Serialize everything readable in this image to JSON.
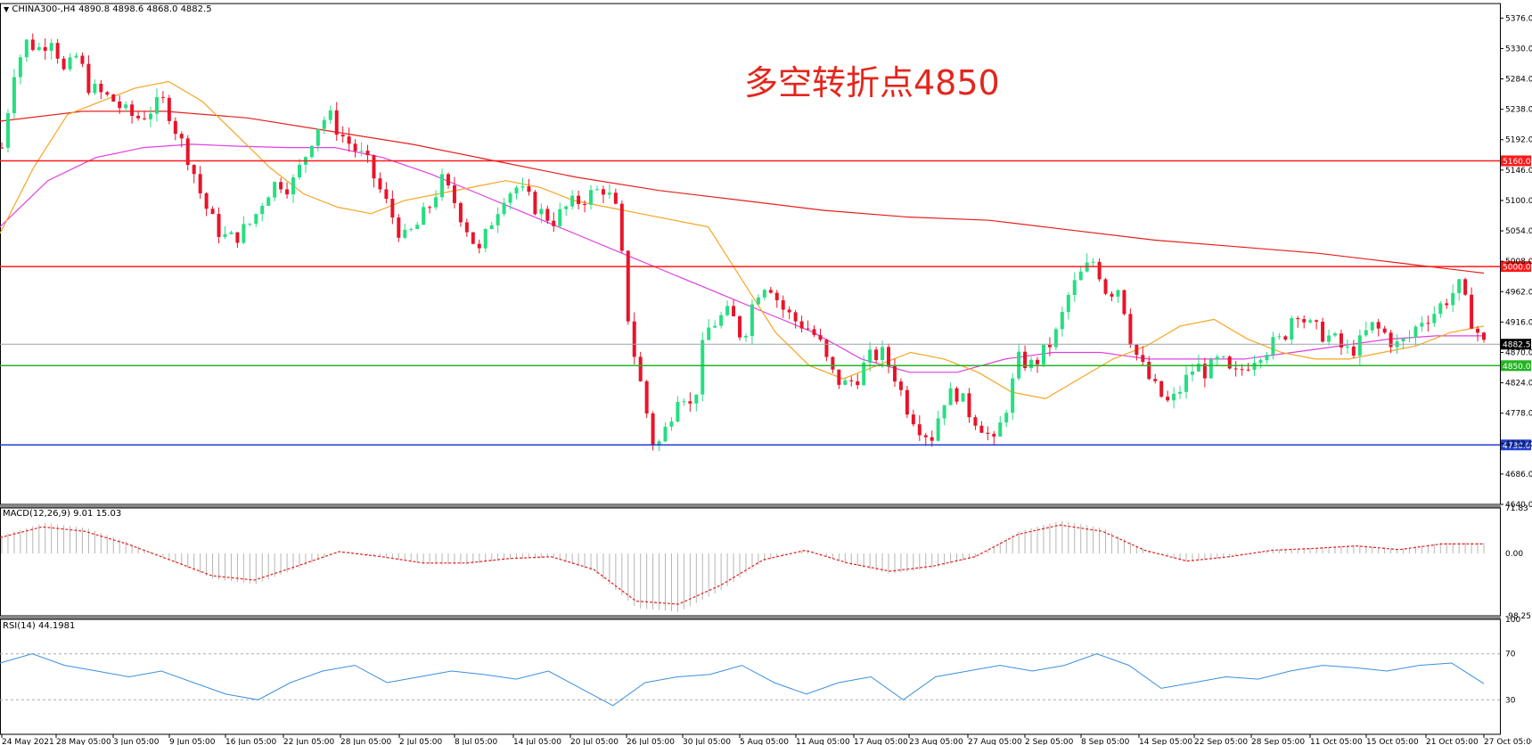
{
  "header": {
    "symbol_label": "CHINA300-,H4",
    "ohlc": "4890.8 4898.6 4868.0 4882.5",
    "macd_label": "MACD(12,26,9) 9.01 15.03",
    "rsi_label": "RSI(14) 44.1981"
  },
  "annotation": "多空转折点4850",
  "colors": {
    "bull": "#26de81",
    "bear": "#e8142a",
    "ma_fast": "#f5a623",
    "ma_mid": "#e040e0",
    "ma_slow": "#e5201c",
    "resistance": "#ff1a1a",
    "pivot": "#22b422",
    "support": "#1f3fcf",
    "rsi_line": "#3a8fde",
    "macd_signal": "#e5201c",
    "macd_hist": "#b5b5b5"
  },
  "chart_data": {
    "type": "candlestick",
    "symbol": "CHINA300-",
    "timeframe": "H4",
    "price_ticks": [
      "5376.0",
      "5330.0",
      "5284.0",
      "5238.0",
      "5192.0",
      "5146.0",
      "5100.0",
      "5054.0",
      "5008.0",
      "4962.0",
      "4916.0",
      "4870.0",
      "4824.0",
      "4778.0",
      "4732.0",
      "4686.0",
      "4640.0"
    ],
    "ylim": [
      4640,
      5398
    ],
    "horizontal_lines": [
      {
        "value": 5160.0,
        "label": "5160.0",
        "color": "#ff1a1a"
      },
      {
        "value": 5000.0,
        "label": "5000.0",
        "color": "#ff1a1a"
      },
      {
        "value": 4850.0,
        "label": "4850.0",
        "color": "#22b422"
      },
      {
        "value": 4730.0,
        "label": "4730.0",
        "color": "#1f3fcf"
      }
    ],
    "current_price": {
      "value": 4882.5,
      "label": "4882.5"
    },
    "x_labels": [
      "24 May 2021",
      "28 May 05:00",
      "3 Jun 05:00",
      "9 Jun 05:00",
      "16 Jun 05:00",
      "22 Jun 05:00",
      "28 Jun 05:00",
      "2 Jul 05:00",
      "8 Jul 05:00",
      "14 Jul 05:00",
      "20 Jul 05:00",
      "26 Jul 05:00",
      "30 Jul 05:00",
      "5 Aug 05:00",
      "11 Aug 05:00",
      "17 Aug 05:00",
      "23 Aug 05:00",
      "27 Aug 05:00",
      "2 Sep 05:00",
      "8 Sep 05:00",
      "14 Sep 05:00",
      "22 Sep 05:00",
      "28 Sep 05:00",
      "11 Oct 05:00",
      "15 Oct 05:00",
      "21 Oct 05:00",
      "27 Oct 05:00"
    ],
    "close_path": [
      5180,
      5300,
      5340,
      5330,
      5350,
      5290,
      5320,
      5270,
      5260,
      5250,
      5230,
      5225,
      5240,
      5250,
      5200,
      5160,
      5100,
      5060,
      5040,
      5050,
      5070,
      5110,
      5130,
      5120,
      5160,
      5210,
      5230,
      5200,
      5180,
      5160,
      5120,
      5080,
      5040,
      5060,
      5090,
      5130,
      5100,
      5060,
      5020,
      5070,
      5110,
      5120,
      5100,
      5080,
      5070,
      5090,
      5100,
      5110,
      5120,
      5080,
      4900,
      4810,
      4720,
      4760,
      4820,
      4780,
      4900,
      4920,
      4930,
      4890,
      4960,
      4980,
      4940,
      4920,
      4910,
      4890,
      4840,
      4820,
      4830,
      4860,
      4870,
      4840,
      4790,
      4760,
      4740,
      4800,
      4810,
      4780,
      4760,
      4730,
      4790,
      4860,
      4850,
      4870,
      4900,
      4960,
      4990,
      5010,
      4960,
      4970,
      4880,
      4840,
      4810,
      4790,
      4820,
      4850,
      4840,
      4860,
      4830,
      4850,
      4870,
      4880,
      4890,
      4940,
      4910,
      4900,
      4890,
      4870,
      4880,
      4910,
      4900,
      4880,
      4890,
      4920,
      4930,
      4950,
      4970,
      4920,
      4882
    ],
    "ma_fast": [
      5050,
      5150,
      5230,
      5250,
      5270,
      5280,
      5250,
      5200,
      5150,
      5110,
      5090,
      5080,
      5100,
      5110,
      5120,
      5130,
      5120,
      5100,
      5090,
      5080,
      5070,
      5060,
      4980,
      4900,
      4850,
      4830,
      4850,
      4870,
      4860,
      4840,
      4810,
      4800,
      4830,
      4860,
      4880,
      4910,
      4920,
      4890,
      4870,
      4860,
      4860,
      4870,
      4880,
      4900,
      4910
    ],
    "ma_mid": [
      5060,
      5130,
      5165,
      5180,
      5185,
      5182,
      5180,
      5180,
      5165,
      5140,
      5110,
      5080,
      5050,
      5020,
      4990,
      4960,
      4930,
      4900,
      4860,
      4840,
      4840,
      4860,
      4870,
      4870,
      4860,
      4860,
      4860,
      4870,
      4880,
      4890,
      4895,
      4895
    ],
    "ma_slow": [
      5220,
      5235,
      5235,
      5225,
      5205,
      5185,
      5160,
      5135,
      5115,
      5100,
      5085,
      5075,
      5070,
      5055,
      5040,
      5030,
      5020,
      5005,
      4990
    ],
    "macd": {
      "label": "MACD(12,26,9)",
      "macd_value": 9.01,
      "signal_value": 15.03,
      "ticks": [
        "71.83",
        "0.00",
        "-98.25"
      ],
      "signal_path": [
        25,
        42,
        35,
        15,
        -10,
        -35,
        -42,
        -20,
        3,
        -5,
        -15,
        -15,
        -8,
        -5,
        -25,
        -75,
        -80,
        -50,
        -10,
        5,
        -15,
        -28,
        -20,
        -5,
        30,
        45,
        35,
        5,
        -12,
        -5,
        5,
        8,
        12,
        6,
        15,
        15
      ]
    },
    "rsi": {
      "label": "RSI(14)",
      "value": 44.1981,
      "ticks": [
        "100",
        "70",
        "30"
      ],
      "path": [
        62,
        70,
        60,
        55,
        50,
        55,
        45,
        35,
        30,
        45,
        55,
        60,
        45,
        50,
        55,
        52,
        48,
        55,
        40,
        25,
        45,
        50,
        52,
        60,
        45,
        35,
        45,
        50,
        30,
        50,
        55,
        60,
        55,
        60,
        70,
        60,
        40,
        45,
        50,
        48,
        55,
        60,
        58,
        55,
        60,
        62,
        44
      ]
    }
  }
}
